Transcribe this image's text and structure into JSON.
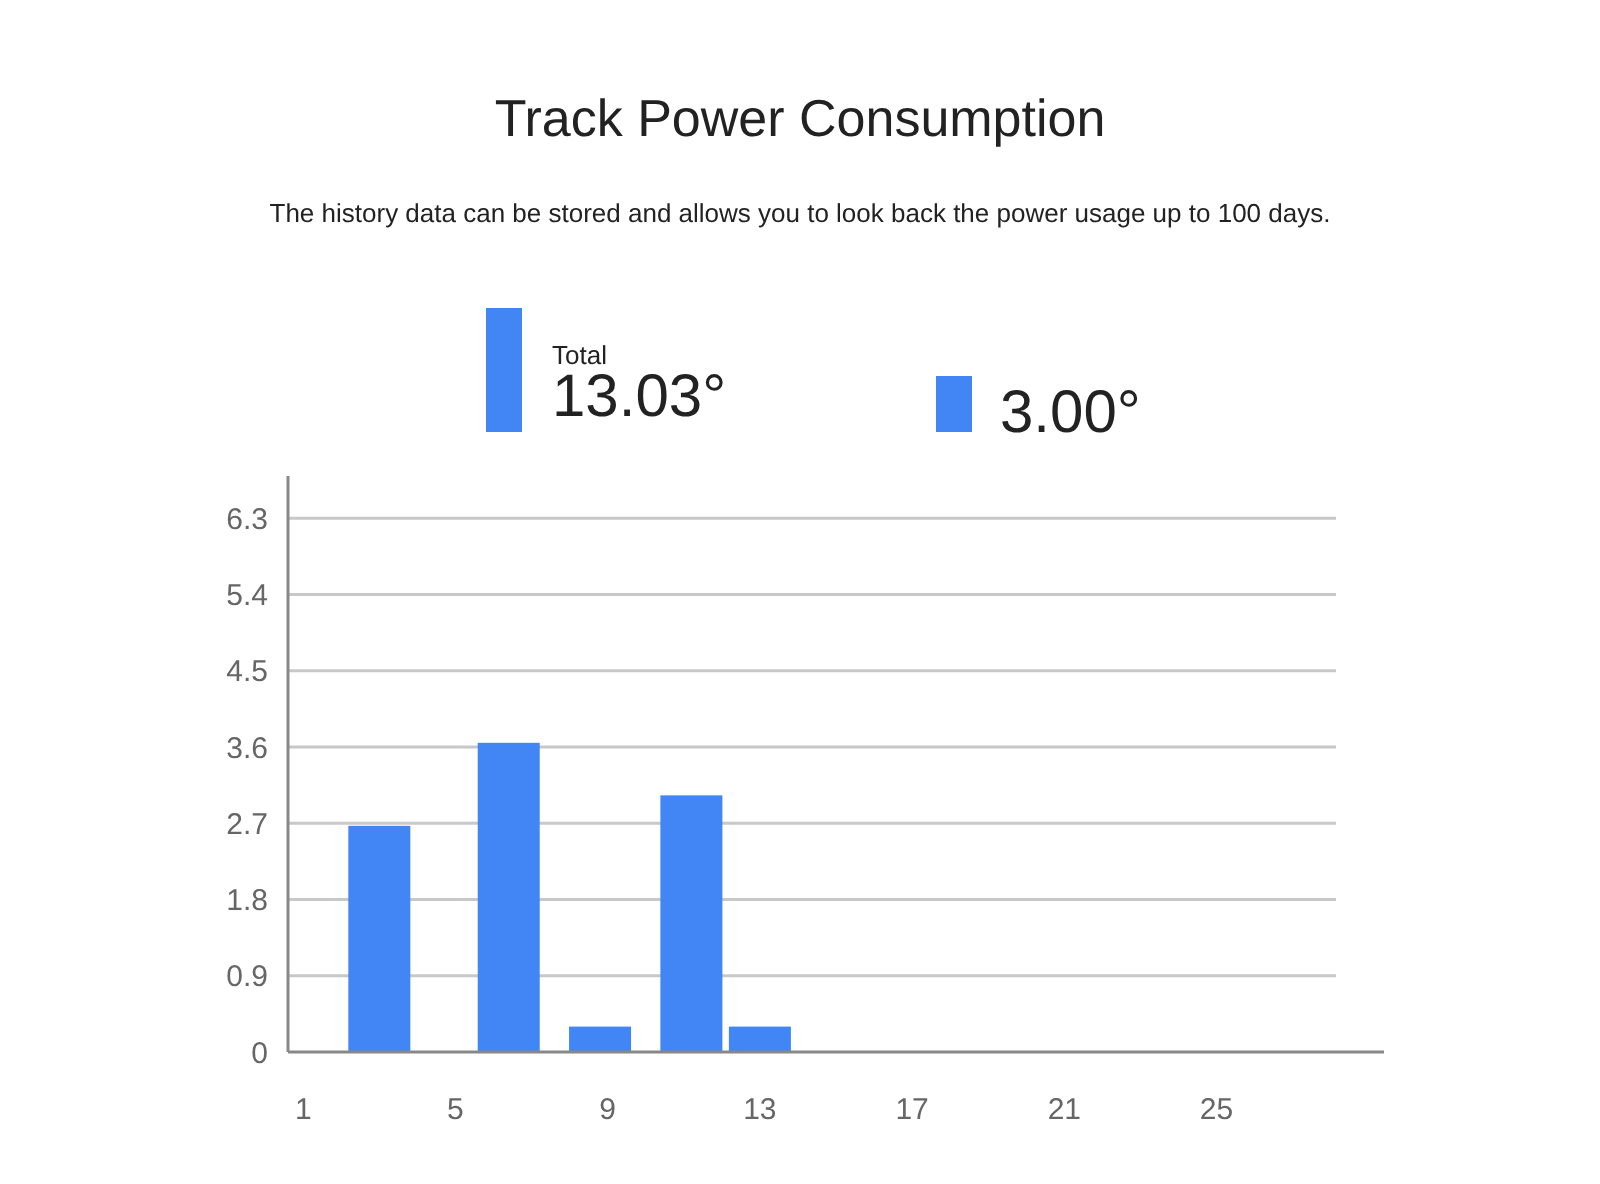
{
  "chart_data": {
    "type": "bar",
    "title": "Track Power Consumption",
    "subtitle": "The history data can be stored and allows you to look back the power usage up to 100 days.",
    "annotations": [
      "Total",
      "13.03°",
      "3.00°"
    ],
    "x": [
      3,
      6.4,
      8.8,
      11.2,
      13
    ],
    "values": [
      2.67,
      3.65,
      0.3,
      3.03,
      0.3
    ],
    "color": "#4285f4",
    "xlim": [
      0.6,
      29.4
    ],
    "xticks": [
      1,
      5,
      9,
      13,
      17,
      21,
      25
    ],
    "ylim": [
      0,
      6.8
    ],
    "yticks": [
      0,
      0.9,
      1.8,
      2.7,
      3.6,
      4.5,
      5.4,
      6.3
    ],
    "grid": "y"
  }
}
